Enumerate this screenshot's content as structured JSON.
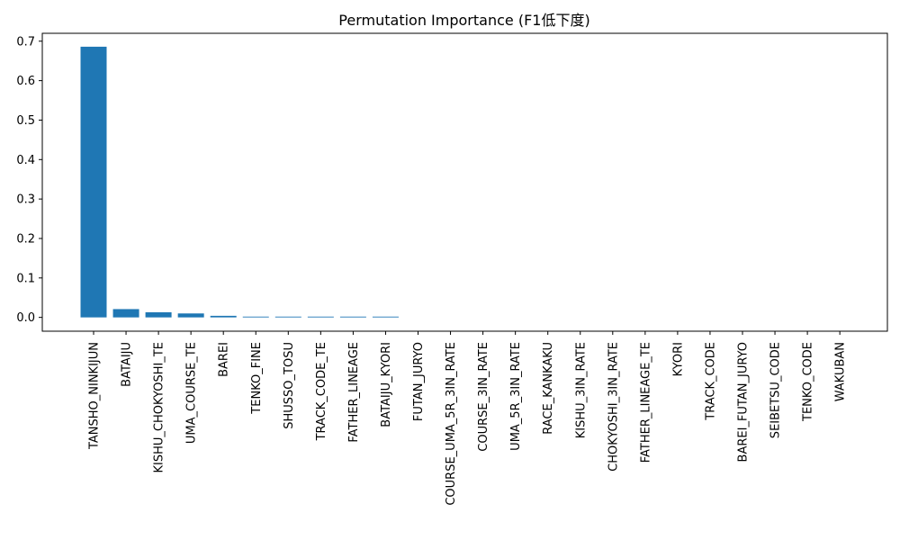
{
  "chart_data": {
    "type": "bar",
    "title": "Permutation Importance (F1低下度)",
    "xlabel": "",
    "ylabel": "",
    "categories": [
      "TANSHO_NINKIJUN",
      "BATAIJU",
      "KISHU_CHOKYOSHI_TE",
      "UMA_COURSE_TE",
      "BAREI",
      "TENKO_FINE",
      "SHUSSO_TOSU",
      "TRACK_CODE_TE",
      "FATHER_LINEAGE",
      "BATAIJU_KYORI",
      "FUTAN_JURYO",
      "COURSE_UMA_5R_3IN_RATE",
      "COURSE_3IN_RATE",
      "UMA_5R_3IN_RATE",
      "RACE_KANKAKU",
      "KISHU_3IN_RATE",
      "CHOKYOSHI_3IN_RATE",
      "FATHER_LINEAGE_TE",
      "KYORI",
      "TRACK_CODE",
      "BAREI_FUTAN_JURYO",
      "SEIBETSU_CODE",
      "TENKO_CODE",
      "WAKUBAN"
    ],
    "values": [
      0.686,
      0.021,
      0.013,
      0.01,
      0.004,
      0.002,
      0.002,
      0.002,
      0.002,
      0.002,
      0.0,
      0.0,
      0.0,
      0.0,
      0.0,
      0.0,
      0.0,
      0.0,
      0.0,
      0.0,
      0.0,
      0.0,
      0.0,
      0.0
    ],
    "ylim": [
      -0.035,
      0.72
    ],
    "yticks": [
      0.0,
      0.1,
      0.2,
      0.3,
      0.4,
      0.5,
      0.6,
      0.7
    ],
    "ytick_labels": [
      "0.0",
      "0.1",
      "0.2",
      "0.3",
      "0.4",
      "0.5",
      "0.6",
      "0.7"
    ],
    "grid": false,
    "colors": {
      "bar": "#1f77b4",
      "axis": "#000000",
      "background": "#ffffff"
    }
  }
}
